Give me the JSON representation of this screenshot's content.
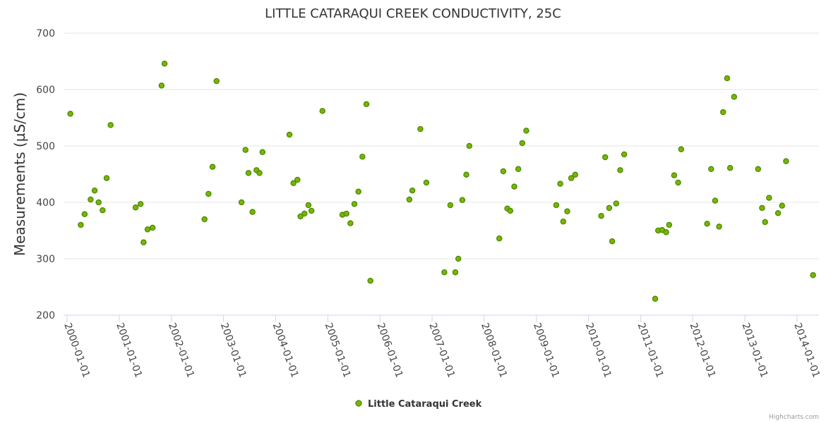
{
  "chart_data": {
    "type": "scatter",
    "title": "LITTLE CATARAQUI CREEK CONDUCTIVITY, 25C",
    "ylabel": "Measurements (µS/cm)",
    "xlabel": "",
    "ylim": [
      200,
      700
    ],
    "yticks": [
      "200",
      "300",
      "400",
      "500",
      "600",
      "700"
    ],
    "xticks": [
      "2000-01-01",
      "2001-01-01",
      "2002-01-01",
      "2003-01-01",
      "2004-01-01",
      "2005-01-01",
      "2006-01-01",
      "2007-01-01",
      "2008-01-01",
      "2009-01-01",
      "2010-01-01",
      "2011-01-01",
      "2012-01-01",
      "2013-01-01",
      "2014-01-01"
    ],
    "grid": "horizontal",
    "legend_position": "bottom",
    "credits": "Highcharts.com",
    "colors": {
      "marker_fill": "#7cb500",
      "marker_stroke": "#4a8a00",
      "grid": "#e6e6e6",
      "axis": "#ccd6eb"
    },
    "series": [
      {
        "name": "Little Cataraqui Creek",
        "points": [
          [
            "2000-01-24",
            557
          ],
          [
            "2000-04-06",
            360
          ],
          [
            "2000-05-03",
            379
          ],
          [
            "2000-06-14",
            405
          ],
          [
            "2000-07-12",
            421
          ],
          [
            "2000-08-09",
            400
          ],
          [
            "2000-09-06",
            386
          ],
          [
            "2000-10-04",
            443
          ],
          [
            "2000-11-01",
            537
          ],
          [
            "2001-04-25",
            391
          ],
          [
            "2001-05-30",
            397
          ],
          [
            "2001-06-20",
            329
          ],
          [
            "2001-07-18",
            352
          ],
          [
            "2001-08-22",
            355
          ],
          [
            "2001-10-24",
            607
          ],
          [
            "2001-11-14",
            646
          ],
          [
            "2002-08-21",
            370
          ],
          [
            "2002-09-18",
            415
          ],
          [
            "2002-10-16",
            463
          ],
          [
            "2002-11-13",
            615
          ],
          [
            "2003-05-07",
            400
          ],
          [
            "2003-06-04",
            493
          ],
          [
            "2003-06-25",
            452
          ],
          [
            "2003-07-23",
            383
          ],
          [
            "2003-08-20",
            457
          ],
          [
            "2003-09-10",
            452
          ],
          [
            "2003-10-01",
            489
          ],
          [
            "2004-04-07",
            520
          ],
          [
            "2004-05-05",
            434
          ],
          [
            "2004-06-02",
            440
          ],
          [
            "2004-06-23",
            375
          ],
          [
            "2004-07-21",
            380
          ],
          [
            "2004-08-18",
            395
          ],
          [
            "2004-09-08",
            385
          ],
          [
            "2004-11-24",
            562
          ],
          [
            "2005-04-13",
            378
          ],
          [
            "2005-05-11",
            380
          ],
          [
            "2005-06-08",
            363
          ],
          [
            "2005-07-06",
            397
          ],
          [
            "2005-08-03",
            419
          ],
          [
            "2005-08-31",
            481
          ],
          [
            "2005-09-28",
            574
          ],
          [
            "2005-10-26",
            261
          ],
          [
            "2006-07-26",
            405
          ],
          [
            "2006-08-16",
            421
          ],
          [
            "2006-10-11",
            530
          ],
          [
            "2006-11-22",
            435
          ],
          [
            "2007-03-28",
            276
          ],
          [
            "2007-05-09",
            395
          ],
          [
            "2007-06-13",
            276
          ],
          [
            "2007-07-04",
            300
          ],
          [
            "2007-08-01",
            404
          ],
          [
            "2007-08-29",
            449
          ],
          [
            "2007-09-19",
            500
          ],
          [
            "2008-04-16",
            336
          ],
          [
            "2008-05-14",
            455
          ],
          [
            "2008-06-11",
            389
          ],
          [
            "2008-07-02",
            385
          ],
          [
            "2008-07-30",
            428
          ],
          [
            "2008-08-27",
            459
          ],
          [
            "2008-09-24",
            505
          ],
          [
            "2008-10-22",
            527
          ],
          [
            "2009-05-20",
            395
          ],
          [
            "2009-06-17",
            433
          ],
          [
            "2009-07-08",
            366
          ],
          [
            "2009-08-05",
            384
          ],
          [
            "2009-09-02",
            443
          ],
          [
            "2009-09-30",
            449
          ],
          [
            "2010-03-31",
            376
          ],
          [
            "2010-04-28",
            480
          ],
          [
            "2010-05-26",
            390
          ],
          [
            "2010-06-16",
            331
          ],
          [
            "2010-07-14",
            398
          ],
          [
            "2010-08-11",
            457
          ],
          [
            "2010-09-08",
            485
          ],
          [
            "2011-04-13",
            229
          ],
          [
            "2011-05-04",
            350
          ],
          [
            "2011-06-01",
            351
          ],
          [
            "2011-06-29",
            347
          ],
          [
            "2011-07-20",
            360
          ],
          [
            "2011-08-24",
            448
          ],
          [
            "2011-09-21",
            435
          ],
          [
            "2011-10-12",
            494
          ],
          [
            "2012-04-11",
            362
          ],
          [
            "2012-05-09",
            459
          ],
          [
            "2012-06-06",
            403
          ],
          [
            "2012-07-04",
            357
          ],
          [
            "2012-08-01",
            560
          ],
          [
            "2012-08-29",
            620
          ],
          [
            "2012-09-19",
            461
          ],
          [
            "2012-10-17",
            587
          ],
          [
            "2013-04-03",
            459
          ],
          [
            "2013-05-01",
            390
          ],
          [
            "2013-05-22",
            365
          ],
          [
            "2013-06-19",
            408
          ],
          [
            "2013-08-21",
            381
          ],
          [
            "2013-09-18",
            394
          ],
          [
            "2013-10-16",
            473
          ],
          [
            "2014-04-23",
            271
          ]
        ]
      }
    ]
  }
}
